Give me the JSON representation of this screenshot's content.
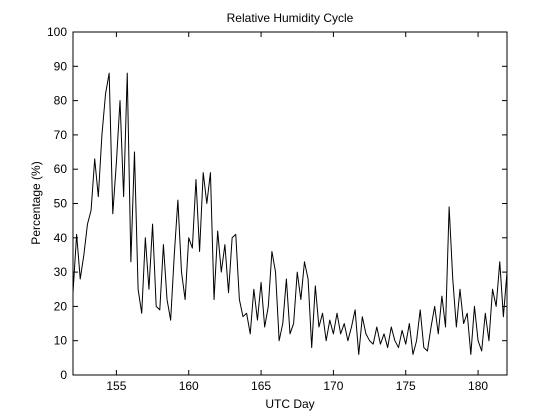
{
  "chart_data": {
    "type": "line",
    "title": "Relative Humidity Cycle",
    "xlabel": "UTC Day",
    "ylabel": "Percentage (%)",
    "x": [
      152,
      152.25,
      152.5,
      152.75,
      153,
      153.25,
      153.5,
      153.75,
      154,
      154.25,
      154.5,
      154.75,
      155,
      155.25,
      155.5,
      155.75,
      156,
      156.25,
      156.5,
      156.75,
      157,
      157.25,
      157.5,
      157.75,
      158,
      158.25,
      158.5,
      158.75,
      159,
      159.25,
      159.5,
      159.75,
      160,
      160.25,
      160.5,
      160.75,
      161,
      161.25,
      161.5,
      161.75,
      162,
      162.25,
      162.5,
      162.75,
      163,
      163.25,
      163.5,
      163.75,
      164,
      164.25,
      164.5,
      164.75,
      165,
      165.25,
      165.5,
      165.75,
      166,
      166.25,
      166.5,
      166.75,
      167,
      167.25,
      167.5,
      167.75,
      168,
      168.25,
      168.5,
      168.75,
      169,
      169.25,
      169.5,
      169.75,
      170,
      170.25,
      170.5,
      170.75,
      171,
      171.25,
      171.5,
      171.75,
      172,
      172.25,
      172.5,
      172.75,
      173,
      173.25,
      173.5,
      173.75,
      174,
      174.25,
      174.5,
      174.75,
      175,
      175.25,
      175.5,
      175.75,
      176,
      176.25,
      176.5,
      176.75,
      177,
      177.25,
      177.5,
      177.75,
      178,
      178.25,
      178.5,
      178.75,
      179,
      179.25,
      179.5,
      179.75,
      180,
      180.25,
      180.5,
      180.75,
      181,
      181.25,
      181.5,
      181.75,
      182
    ],
    "series": [
      {
        "name": "Relative Humidity",
        "color": "#000000",
        "values": [
          24,
          41,
          28,
          35,
          44,
          48,
          63,
          52,
          70,
          82,
          88,
          47,
          62,
          80,
          52,
          88,
          33,
          65,
          25,
          18,
          40,
          25,
          44,
          20,
          19,
          38,
          22,
          16,
          35,
          51,
          30,
          22,
          40,
          37,
          57,
          36,
          59,
          50,
          59,
          22,
          42,
          30,
          38,
          24,
          40,
          41,
          22,
          17,
          18,
          12,
          25,
          16,
          27,
          14,
          20,
          36,
          30,
          10,
          15,
          28,
          12,
          15,
          30,
          22,
          33,
          28,
          8,
          26,
          14,
          18,
          10,
          16,
          12,
          18,
          12,
          15,
          10,
          14,
          19,
          6,
          17,
          12,
          10,
          9,
          14,
          9,
          12,
          8,
          14,
          10,
          8,
          13,
          9,
          15,
          6,
          10,
          19,
          8,
          7,
          14,
          20,
          12,
          23,
          14,
          49,
          28,
          14,
          25,
          15,
          18,
          6,
          20,
          10,
          7,
          18,
          10,
          25,
          20,
          33,
          17,
          30
        ]
      }
    ],
    "xlim": [
      152,
      182
    ],
    "ylim": [
      0,
      100
    ],
    "xticks": [
      155,
      160,
      165,
      170,
      175,
      180
    ],
    "yticks": [
      0,
      10,
      20,
      30,
      40,
      50,
      60,
      70,
      80,
      90,
      100
    ]
  }
}
